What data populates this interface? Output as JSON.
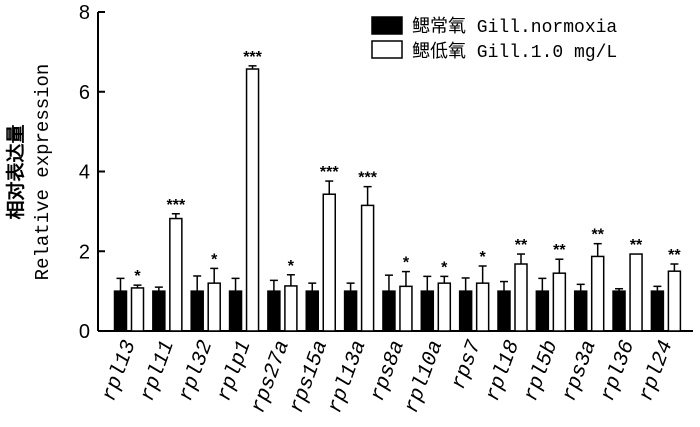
{
  "chart_data": {
    "type": "bar",
    "ylabel_cn": "相对表达量",
    "ylabel_en": "Relative expression",
    "ylim": [
      0,
      8
    ],
    "yticks": [
      0,
      2,
      4,
      6,
      8
    ],
    "categories": [
      "rpl13",
      "rpl11",
      "rpl32",
      "rplp1",
      "rps27a",
      "rps15a",
      "rpl13a",
      "rps8a",
      "rpl10a",
      "rps7",
      "rpl18",
      "rpl5b",
      "rps3a",
      "rpl36",
      "rpl24"
    ],
    "series": [
      {
        "name": "鳃常氧 Gill.normoxia",
        "color": "#000000",
        "values": [
          1.0,
          1.0,
          1.0,
          1.0,
          1.0,
          1.0,
          1.0,
          1.0,
          1.0,
          1.0,
          1.0,
          1.0,
          1.0,
          1.0,
          1.0
        ],
        "errors": [
          0.32,
          0.1,
          0.38,
          0.32,
          0.27,
          0.2,
          0.2,
          0.4,
          0.37,
          0.33,
          0.24,
          0.32,
          0.17,
          0.06,
          0.12
        ]
      },
      {
        "name": "鳃低氧 Gill.1.0 mg/L",
        "color": "#ffffff",
        "values": [
          1.08,
          2.82,
          1.2,
          6.57,
          1.13,
          3.43,
          3.15,
          1.12,
          1.2,
          1.2,
          1.68,
          1.45,
          1.87,
          1.93,
          1.5
        ],
        "errors": [
          0.07,
          0.12,
          0.37,
          0.08,
          0.28,
          0.33,
          0.47,
          0.37,
          0.17,
          0.43,
          0.25,
          0.35,
          0.32,
          0.0,
          0.18
        ]
      }
    ],
    "significance": [
      "*",
      "***",
      "*",
      "***",
      "*",
      "***",
      "***",
      "*",
      "*",
      "*",
      "**",
      "**",
      "**",
      "**",
      "**"
    ],
    "legend_position": "top-right"
  }
}
